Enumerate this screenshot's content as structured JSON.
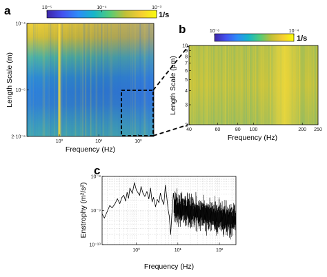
{
  "colors": {
    "colormap": [
      "#3e26a8",
      "#4352f0",
      "#2d8cf8",
      "#16b6c8",
      "#52cc7a",
      "#c0c038",
      "#f6cd32",
      "#f9fb0e"
    ],
    "line": "#000000",
    "grid": "#b8b8b8"
  },
  "chart_data": [
    {
      "panel": "a",
      "type": "heatmap",
      "title": "",
      "xlabel": "Frequency (Hz)",
      "ylabel": "Length Scale (m)",
      "xscale": "log",
      "yscale": "log",
      "xlim": [
        0.15,
        250
      ],
      "ylim": [
        2e-06,
        0.0001
      ],
      "xticks": [
        {
          "value": 1,
          "label": "10⁰"
        },
        {
          "value": 10,
          "label": "10¹"
        },
        {
          "value": 100,
          "label": "10²"
        }
      ],
      "yticks": [
        {
          "value": 0.0001,
          "label": "10⁻⁴"
        },
        {
          "value": 1e-05,
          "label": "10⁻⁵"
        },
        {
          "value": 2e-06,
          "label": "2·10⁻⁶"
        }
      ],
      "colorbar": {
        "scale": "log",
        "range": [
          1e-05,
          0.001
        ],
        "ticks": [
          {
            "value": 1e-05,
            "label": "10⁻⁵"
          },
          {
            "value": 0.0001,
            "label": "10⁻⁴"
          },
          {
            "value": 0.001,
            "label": "10⁻³"
          }
        ],
        "unit": "1/s"
      },
      "highlight_box": {
        "x": [
          40,
          250
        ],
        "y": [
          2e-06,
          1e-05
        ]
      }
    },
    {
      "panel": "b",
      "type": "heatmap",
      "title": "",
      "xlabel": "Frequency (Hz)",
      "ylabel": "Length Scale (μm)",
      "xscale": "log",
      "yscale": "log",
      "xlim": [
        40,
        250
      ],
      "ylim": [
        2,
        10
      ],
      "xticks": [
        {
          "value": 40,
          "label": "40"
        },
        {
          "value": 60,
          "label": "60"
        },
        {
          "value": 80,
          "label": "80"
        },
        {
          "value": 100,
          "label": "100"
        },
        {
          "value": 200,
          "label": "200"
        },
        {
          "value": 250,
          "label": "250"
        }
      ],
      "yticks": [
        {
          "value": 2,
          "label": "2"
        },
        {
          "value": 3,
          "label": "3"
        },
        {
          "value": 4,
          "label": "4"
        },
        {
          "value": 5,
          "label": "5"
        },
        {
          "value": 6,
          "label": "6"
        },
        {
          "value": 7,
          "label": "7"
        },
        {
          "value": 8,
          "label": "8"
        },
        {
          "value": 9,
          "label": "9"
        },
        {
          "value": 10,
          "label": "10"
        }
      ],
      "colorbar": {
        "scale": "log",
        "range": [
          1e-06,
          0.0001
        ],
        "ticks": [
          {
            "value": 1e-06,
            "label": "10⁻⁶"
          },
          {
            "value": 0.0001,
            "label": "10⁻⁴"
          }
        ],
        "unit": "1/s"
      }
    },
    {
      "panel": "c",
      "type": "line",
      "title": "",
      "xlabel": "Frequency (Hz)",
      "ylabel": "Enstrophy (m²/s²)",
      "xscale": "log",
      "yscale": "log",
      "xlim": [
        0.15,
        250
      ],
      "ylim": [
        1e-10,
        1e-08
      ],
      "grid": true,
      "xticks": [
        {
          "value": 1,
          "label": "10⁰"
        },
        {
          "value": 10,
          "label": "10¹"
        },
        {
          "value": 100,
          "label": "10²"
        }
      ],
      "yticks": [
        {
          "value": 1e-08,
          "label": "10⁻⁸"
        },
        {
          "value": 1e-09,
          "label": "10⁻⁹"
        },
        {
          "value": 1e-10,
          "label": "10⁻¹⁰"
        }
      ],
      "series": [
        {
          "color": "#000000",
          "points": [
            [
              0.15,
              8e-10
            ],
            [
              0.17,
              6e-10
            ],
            [
              0.2,
              9.5e-10
            ],
            [
              0.23,
              1.4e-09
            ],
            [
              0.26,
              1.2e-09
            ],
            [
              0.3,
              1.5e-09
            ],
            [
              0.35,
              2.2e-09
            ],
            [
              0.4,
              1.6e-09
            ],
            [
              0.45,
              2.4e-09
            ],
            [
              0.5,
              2.8e-09
            ],
            [
              0.55,
              1.9e-09
            ],
            [
              0.6,
              3.4e-09
            ],
            [
              0.65,
              2.3e-09
            ],
            [
              0.7,
              4.5e-09
            ],
            [
              0.8,
              3.2e-09
            ],
            [
              0.9,
              6.5e-09
            ],
            [
              1.0,
              4e-09
            ],
            [
              1.1,
              3.3e-09
            ],
            [
              1.2,
              2.8e-09
            ],
            [
              1.3,
              5e-09
            ],
            [
              1.45,
              3.2e-09
            ],
            [
              1.6,
              2.6e-09
            ],
            [
              1.8,
              3.6e-09
            ],
            [
              2.0,
              2.2e-09
            ],
            [
              2.2,
              4.5e-09
            ],
            [
              2.4,
              1.8e-09
            ],
            [
              2.6,
              2.4e-09
            ],
            [
              2.9,
              1.3e-09
            ],
            [
              3.2,
              2.1e-09
            ],
            [
              3.5,
              1.7e-09
            ],
            [
              3.8,
              3.2e-09
            ],
            [
              4.2,
              2e-09
            ],
            [
              4.6,
              1.5e-09
            ],
            [
              5.0,
              5.5e-09
            ],
            [
              5.4,
              2.5e-09
            ],
            [
              5.8,
              1.1e-09
            ],
            [
              6.2,
              7e-10
            ],
            [
              6.7,
              2e-10
            ],
            [
              7.2,
              8e-10
            ],
            [
              7.8,
              3.2e-09
            ],
            [
              8.5,
              1.2e-09
            ],
            [
              9.2,
              2.5e-09
            ],
            [
              10,
              8e-10
            ],
            [
              11,
              1.8e-09
            ],
            [
              12,
              5e-10
            ],
            [
              13,
              1.4e-09
            ],
            [
              14,
              2.2e-09
            ],
            [
              15.5,
              9e-10
            ],
            [
              17,
              1.5e-09
            ],
            [
              19,
              4.5e-10
            ],
            [
              21,
              1.1e-09
            ],
            [
              23,
              2.4e-09
            ],
            [
              26,
              6.5e-10
            ],
            [
              29,
              1.2e-09
            ],
            [
              32,
              3.5e-10
            ],
            [
              36,
              9e-10
            ],
            [
              40,
              1.6e-09
            ],
            [
              45,
              5.5e-10
            ],
            [
              50,
              1.1e-09
            ],
            [
              56,
              3e-10
            ],
            [
              63,
              8e-10
            ],
            [
              70,
              1.3e-09
            ],
            [
              80,
              4e-10
            ],
            [
              90,
              9e-10
            ],
            [
              100,
              1.4e-09
            ],
            [
              115,
              5e-10
            ],
            [
              130,
              1e-09
            ],
            [
              150,
              3.5e-10
            ],
            [
              170,
              8e-10
            ],
            [
              195,
              1.2e-09
            ],
            [
              220,
              4.5e-10
            ],
            [
              250,
              8.5e-10
            ]
          ]
        }
      ]
    }
  ]
}
